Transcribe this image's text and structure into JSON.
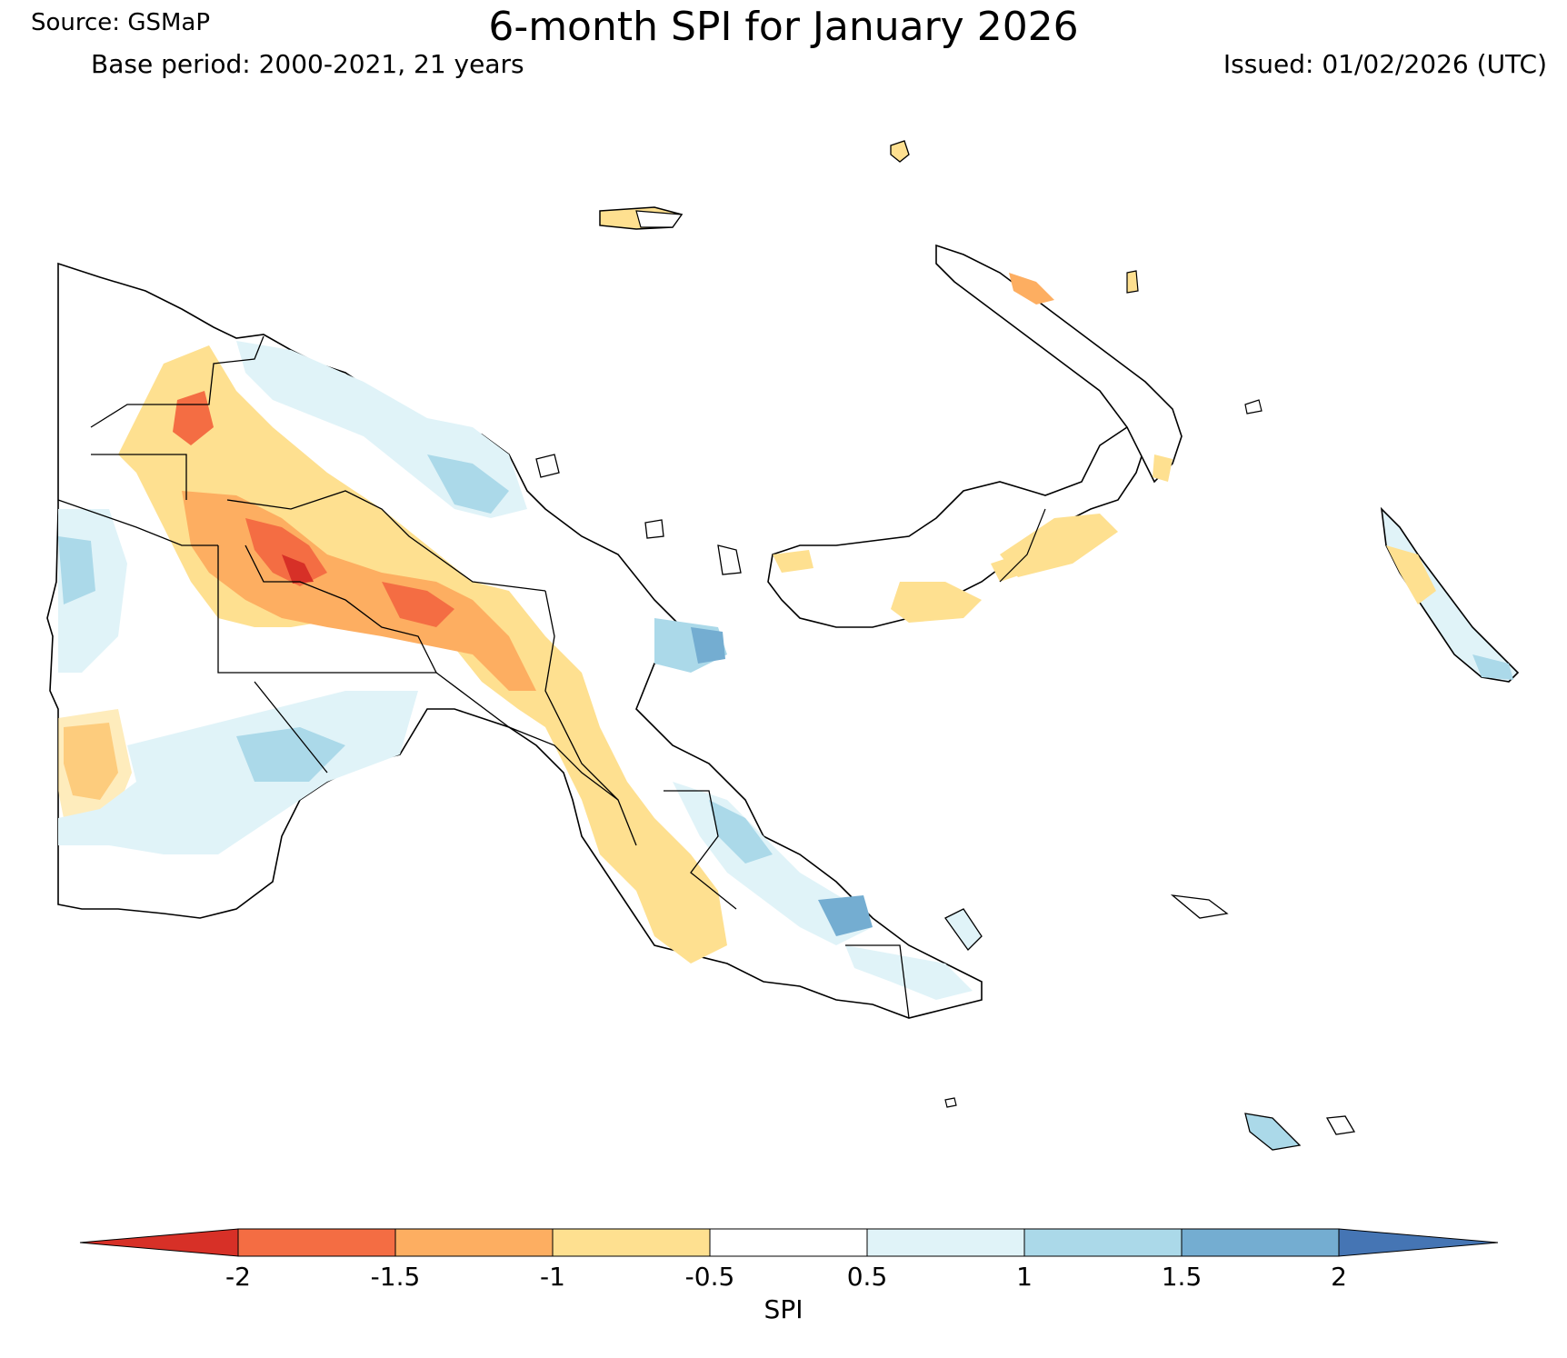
{
  "header": {
    "title": "6-month SPI for January 2026",
    "source": "Source: GSMaP",
    "base_period": "Base period: 2000-2021, 21 years",
    "issued": "Issued: 01/02/2026 (UTC)"
  },
  "colorbar": {
    "label": "SPI",
    "ticks": [
      "-2",
      "-1.5",
      "-1",
      "-0.5",
      "0.5",
      "1",
      "1.5",
      "2"
    ],
    "bins": [
      {
        "range": "< -2",
        "color": "#d73027"
      },
      {
        "range": "-2 to -1.5",
        "color": "#f46d43"
      },
      {
        "range": "-1.5 to -1",
        "color": "#fdae61"
      },
      {
        "range": "-1 to -0.5",
        "color": "#fee090"
      },
      {
        "range": "-0.5 to 0.5",
        "color": "#ffffff"
      },
      {
        "range": "0.5 to 1",
        "color": "#e0f3f8"
      },
      {
        "range": "1 to 1.5",
        "color": "#abd9e9"
      },
      {
        "range": "1.5 to 2",
        "color": "#74add1"
      },
      {
        "range": "> 2",
        "color": "#4575b4"
      }
    ]
  },
  "map": {
    "region": "Papua New Guinea",
    "variable": "SPI"
  }
}
